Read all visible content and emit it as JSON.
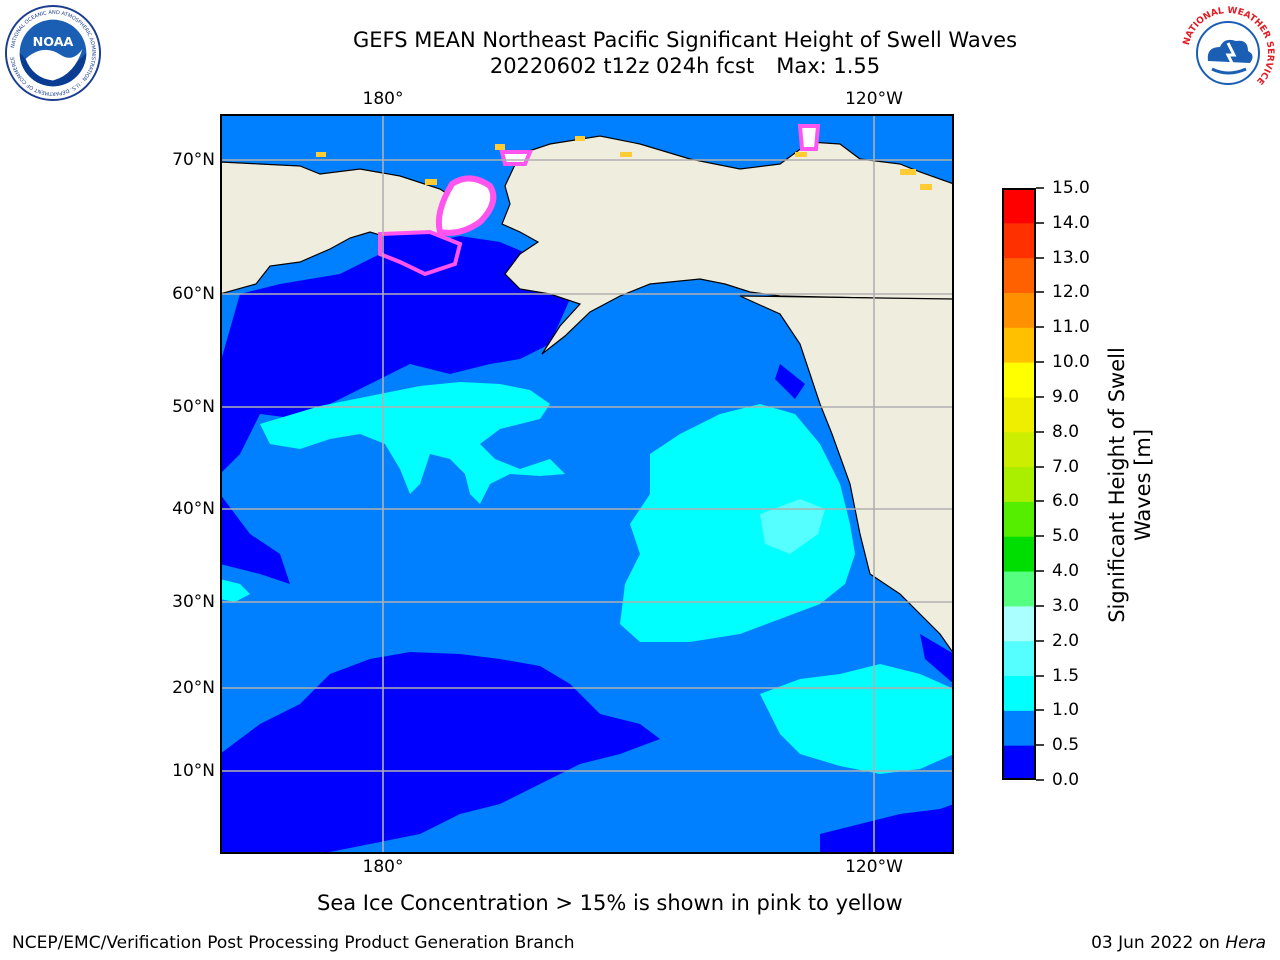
{
  "title": {
    "line1": "GEFS MEAN Northeast Pacific Significant Height of Swell Waves",
    "date_run": "20220602 t12z 024h fcst",
    "max_label": "Max: 1.55"
  },
  "map": {
    "lon_labels": [
      "180°",
      "120°W"
    ],
    "lat_labels": [
      "70°N",
      "60°N",
      "50°N",
      "40°N",
      "30°N",
      "20°N",
      "10°N"
    ],
    "lat_values": [
      70,
      60,
      50,
      40,
      30,
      20,
      10
    ],
    "lon_values": [
      180,
      -120
    ],
    "colors": {
      "land": "#efedde",
      "ice": "#ff55ee",
      "ice_edge": "#ffcc33",
      "grid": "#b0b0b0"
    }
  },
  "colorbar": {
    "label_line1": "Significant Height of Swell",
    "label_line2": "Waves [m]",
    "ticks": [
      "0.0",
      "0.5",
      "1.0",
      "1.5",
      "2.0",
      "3.0",
      "4.0",
      "5.0",
      "6.0",
      "7.0",
      "8.0",
      "9.0",
      "10.0",
      "11.0",
      "12.0",
      "13.0",
      "14.0",
      "15.0"
    ],
    "colors": [
      "#0000ff",
      "#0080ff",
      "#00ffff",
      "#55ffff",
      "#aaffff",
      "#55ff80",
      "#00dd00",
      "#55ee00",
      "#aaee00",
      "#ccee00",
      "#eeee00",
      "#ffff00",
      "#ffc000",
      "#ff9000",
      "#ff6000",
      "#ff3000",
      "#ff0000"
    ]
  },
  "footnote": "Sea Ice Concentration > 15% is shown in pink to yellow",
  "credit": "NCEP/EMC/Verification Post Processing Product Generation Branch",
  "datestamp": {
    "date": "03 Jun 2022 on",
    "machine": "Hera"
  },
  "logos": {
    "noaa_text": "NOAA",
    "noaa_ring": "NATIONAL OCEANIC AND ATMOSPHERIC ADMINISTRATION · U.S. DEPARTMENT OF COMMERCE",
    "nws_ring": "NATIONAL WEATHER SERVICE"
  }
}
